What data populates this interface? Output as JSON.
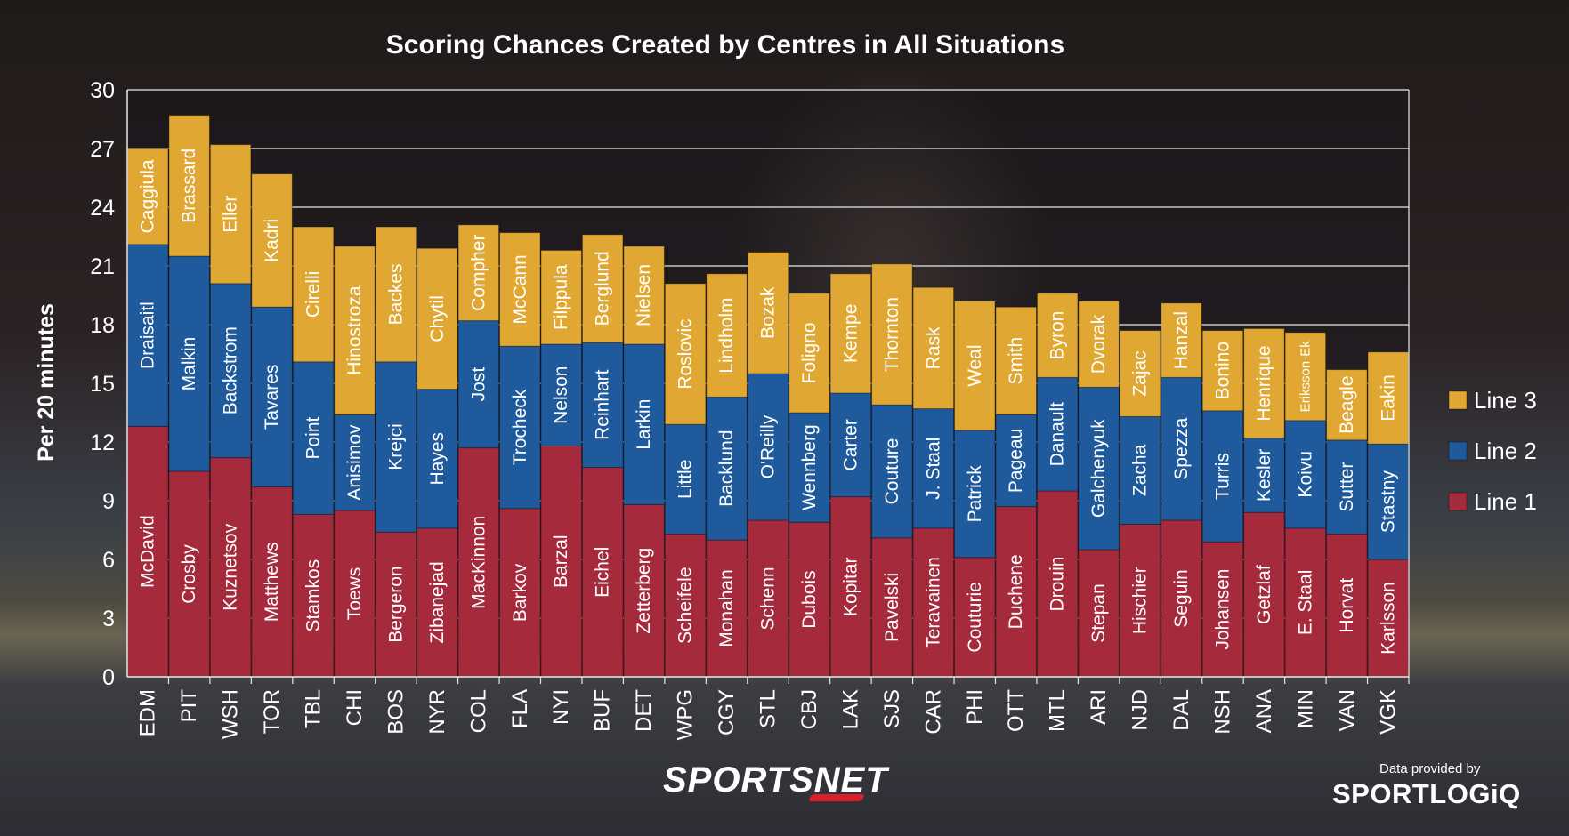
{
  "chart_data": {
    "type": "bar",
    "stacked": true,
    "title": "Scoring Chances Created by Centres in All Situations",
    "ylabel": "Per 20 minutes",
    "xlabel": "",
    "ylim": [
      0,
      30
    ],
    "yticks": [
      0,
      3,
      6,
      9,
      12,
      15,
      18,
      21,
      24,
      27,
      30
    ],
    "grid": true,
    "legend_position": "right",
    "categories": [
      "EDM",
      "PIT",
      "WSH",
      "TOR",
      "TBL",
      "CHI",
      "BOS",
      "NYR",
      "COL",
      "FLA",
      "NYI",
      "BUF",
      "DET",
      "WPG",
      "CGY",
      "STL",
      "CBJ",
      "LAK",
      "SJS",
      "CAR",
      "PHI",
      "OTT",
      "MTL",
      "ARI",
      "NJD",
      "DAL",
      "NSH",
      "ANA",
      "MIN",
      "VAN",
      "VGK"
    ],
    "series": [
      {
        "name": "Line 1",
        "color": "#a52a3c",
        "values": [
          12.8,
          10.5,
          11.2,
          9.7,
          8.3,
          8.5,
          7.4,
          7.6,
          11.7,
          8.6,
          11.8,
          10.7,
          8.8,
          7.3,
          7.0,
          8.0,
          7.9,
          9.2,
          7.1,
          7.6,
          6.1,
          8.7,
          9.5,
          6.5,
          7.8,
          8.0,
          6.9,
          8.4,
          7.6,
          7.3,
          6.0
        ]
      },
      {
        "name": "Line 2",
        "color": "#1f5a9c",
        "values": [
          9.3,
          11.0,
          8.9,
          9.2,
          7.8,
          4.9,
          8.7,
          7.1,
          6.5,
          8.3,
          5.2,
          6.4,
          8.2,
          5.6,
          7.3,
          7.5,
          5.6,
          5.3,
          6.8,
          6.1,
          6.5,
          4.7,
          5.8,
          8.3,
          5.5,
          7.3,
          6.7,
          3.8,
          5.5,
          4.8,
          5.9
        ]
      },
      {
        "name": "Line 3",
        "color": "#e0a832",
        "values": [
          4.9,
          7.2,
          7.1,
          6.8,
          6.9,
          8.6,
          6.9,
          7.2,
          4.9,
          5.8,
          4.8,
          5.5,
          5.0,
          7.2,
          6.3,
          6.2,
          6.1,
          6.1,
          7.2,
          6.2,
          6.6,
          5.5,
          4.3,
          4.4,
          4.4,
          3.8,
          4.1,
          5.6,
          4.5,
          3.6,
          4.7
        ]
      }
    ],
    "bar_labels": {
      "Line 1": [
        "McDavid",
        "Crosby",
        "Kuznetsov",
        "Matthews",
        "Stamkos",
        "Toews",
        "Bergeron",
        "Zibanejad",
        "MacKinnon",
        "Barkov",
        "Barzal",
        "Eichel",
        "Zetterberg",
        "Scheifele",
        "Monahan",
        "Schenn",
        "Dubois",
        "Kopitar",
        "Pavelski",
        "Teravainen",
        "Couturie",
        "Duchene",
        "Drouin",
        "Stepan",
        "Hischier",
        "Seguin",
        "Johansen",
        "Getzlaf",
        "E. Staal",
        "Horvat",
        "Karlsson"
      ],
      "Line 2": [
        "Draisaitl",
        "Malkin",
        "Backstrom",
        "Tavares",
        "Point",
        "Anisimov",
        "Krejci",
        "Hayes",
        "Jost",
        "Trocheck",
        "Nelson",
        "Reinhart",
        "Larkin",
        "Little",
        "Backlund",
        "O'Reilly",
        "Wennberg",
        "Carter",
        "Couture",
        "J. Staal",
        "Patrick",
        "Pageau",
        "Danault",
        "Galchenyuk",
        "Zacha",
        "Spezza",
        "Turris",
        "Kesler",
        "Koivu",
        "Sutter",
        "Stastny"
      ],
      "Line 3": [
        "Caggiula",
        "Brassard",
        "Eller",
        "Kadri",
        "Cirelli",
        "Hinostroza",
        "Backes",
        "Chytil",
        "Compher",
        "McCann",
        "Filppula",
        "Berglund",
        "Nielsen",
        "Roslovic",
        "Lindholm",
        "Bozak",
        "Foligno",
        "Kempe",
        "Thornton",
        "Rask",
        "Weal",
        "Smith",
        "Byron",
        "Dvorak",
        "Zajac",
        "Hanzal",
        "Bonino",
        "Henrique",
        "Eriksson-Ek",
        "Beagle",
        "Eakin"
      ]
    },
    "legend": [
      "Line 3",
      "Line 2",
      "Line 1"
    ]
  },
  "branding": {
    "broadcaster": "SPORTSNET",
    "credit_text": "Data provided by",
    "data_provider": "SPORTLOGiQ"
  }
}
